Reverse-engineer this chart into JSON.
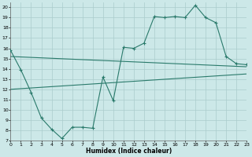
{
  "line1_x": [
    0,
    1,
    2,
    3,
    4,
    5,
    6,
    7,
    8,
    9,
    10,
    11,
    12,
    13,
    14,
    15,
    16,
    17,
    18,
    19,
    20,
    21,
    22,
    23
  ],
  "line1_y": [
    15.8,
    13.9,
    11.7,
    9.2,
    8.1,
    7.2,
    8.3,
    8.3,
    8.2,
    13.2,
    10.9,
    16.1,
    16.0,
    16.5,
    19.1,
    19.0,
    19.1,
    19.0,
    20.2,
    19.0,
    18.5,
    15.2,
    14.5,
    14.4
  ],
  "line2_x": [
    0,
    23
  ],
  "line2_y": [
    15.2,
    14.2
  ],
  "line3_x": [
    0,
    23
  ],
  "line3_y": [
    12.0,
    13.5
  ],
  "line_color": "#2a7a6b",
  "bg_color": "#cce8e8",
  "grid_color": "#aacccc",
  "xlabel": "Humidex (Indice chaleur)",
  "xlim": [
    0,
    23
  ],
  "ylim": [
    7,
    20.5
  ],
  "xticks": [
    0,
    1,
    2,
    3,
    4,
    5,
    6,
    7,
    8,
    9,
    10,
    11,
    12,
    13,
    14,
    15,
    16,
    17,
    18,
    19,
    20,
    21,
    22,
    23
  ],
  "yticks": [
    7,
    8,
    9,
    10,
    11,
    12,
    13,
    14,
    15,
    16,
    17,
    18,
    19,
    20
  ],
  "marker": "+"
}
